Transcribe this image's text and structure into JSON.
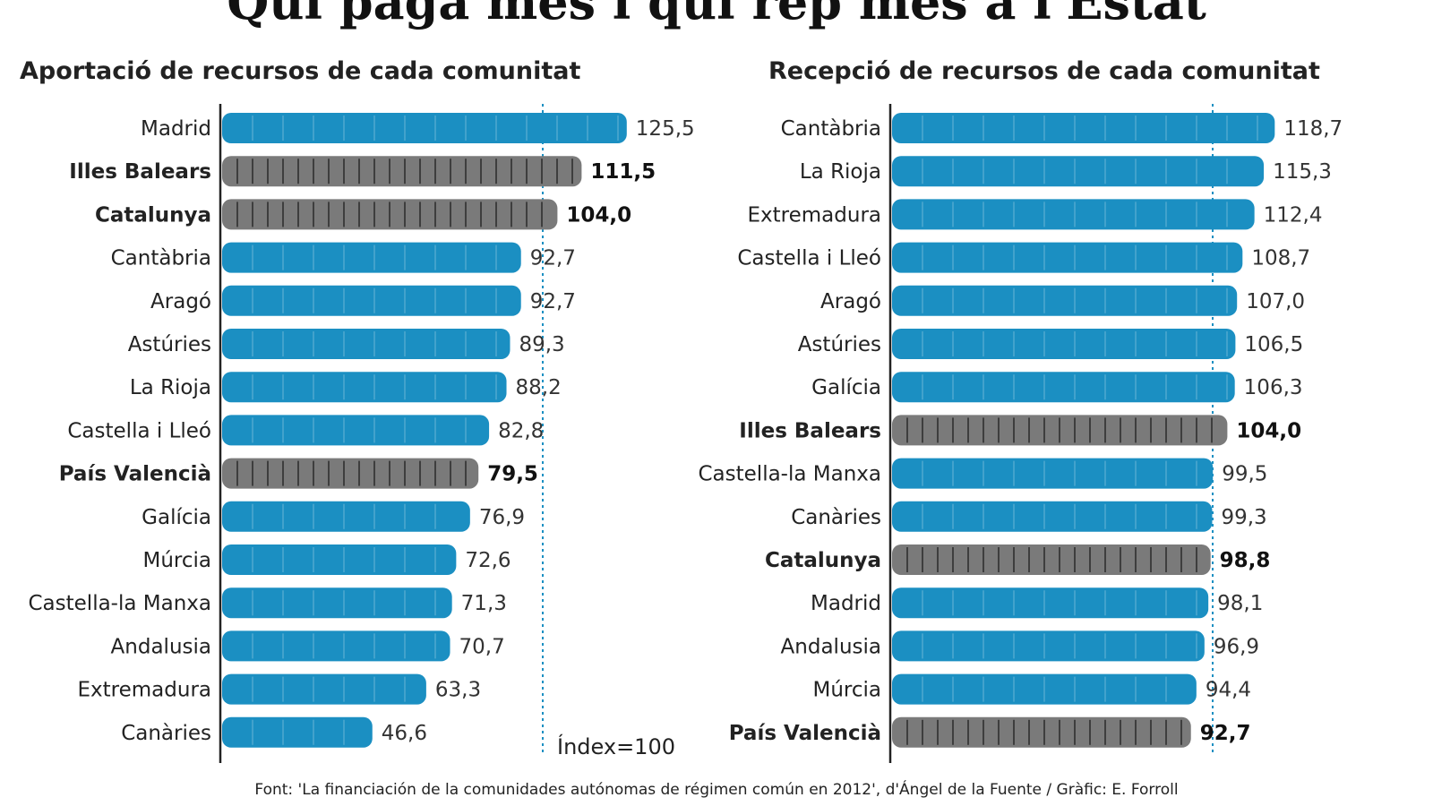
{
  "title": "Qui paga més i qui rep més a l'Estat",
  "source": "Font: 'La financiación de la comunidades autónomas de régimen común en 2012', d'Ángel de la Fuente / Gràfic: E. Forroll",
  "colors": {
    "normal": "#1b8fc2",
    "highlight": "#7a7a7a",
    "reference": "#1b8fc2"
  },
  "chart_data": [
    {
      "type": "bar",
      "orientation": "horizontal",
      "title": "Aportació de recursos de cada comunitat",
      "reference_label": "Índex=100",
      "reference_value": 100,
      "categories": [
        "Madrid",
        "Illes Balears",
        "Catalunya",
        "Cantàbria",
        "Aragó",
        "Astúries",
        "La Rioja",
        "Castella i Lleó",
        "País Valencià",
        "Galícia",
        "Múrcia",
        "Castella-la Manxa",
        "Andalusia",
        "Extremadura",
        "Canàries"
      ],
      "values": [
        125.5,
        111.5,
        104.0,
        92.7,
        92.7,
        89.3,
        88.2,
        82.8,
        79.5,
        76.9,
        72.6,
        71.3,
        70.7,
        63.3,
        46.6
      ],
      "value_labels": [
        "125,5",
        "111,5",
        "104,0",
        "92,7",
        "92,7",
        "89,3",
        "88,2",
        "82,8",
        "79,5",
        "76,9",
        "72,6",
        "71,3",
        "70,7",
        "63,3",
        "46,6"
      ],
      "highlighted": [
        "Illes Balears",
        "Catalunya",
        "País Valencià"
      ]
    },
    {
      "type": "bar",
      "orientation": "horizontal",
      "title": "Recepció de recursos de cada comunitat",
      "reference_value": 100,
      "categories": [
        "Cantàbria",
        "La Rioja",
        "Extremadura",
        "Castella i Lleó",
        "Aragó",
        "Astúries",
        "Galícia",
        "Illes Balears",
        "Castella-la Manxa",
        "Canàries",
        "Catalunya",
        "Madrid",
        "Andalusia",
        "Múrcia",
        "País Valencià"
      ],
      "values": [
        118.7,
        115.3,
        112.4,
        108.7,
        107.0,
        106.5,
        106.3,
        104.0,
        99.5,
        99.3,
        98.8,
        98.1,
        96.9,
        94.4,
        92.7
      ],
      "value_labels": [
        "118,7",
        "115,3",
        "112,4",
        "108,7",
        "107,0",
        "106,5",
        "106,3",
        "104,0",
        "99,5",
        "99,3",
        "98,8",
        "98,1",
        "96,9",
        "94,4",
        "92,7"
      ],
      "highlighted": [
        "Illes Balears",
        "Catalunya",
        "País Valencià"
      ]
    }
  ]
}
